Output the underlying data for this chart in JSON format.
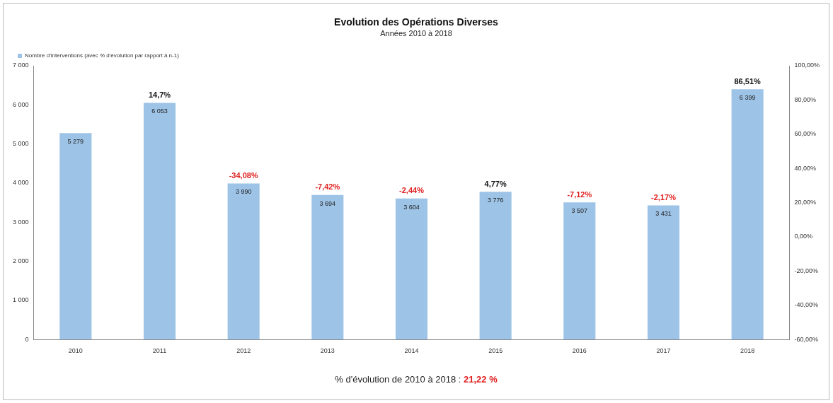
{
  "chart_data": {
    "type": "bar",
    "title": "Evolution des Opérations Diverses",
    "subtitle": "Années 2010 à 2018",
    "categories": [
      "2010",
      "2011",
      "2012",
      "2013",
      "2014",
      "2015",
      "2016",
      "2017",
      "2018"
    ],
    "series": [
      {
        "name": "Nombre d'interventions (avec % d'évolution par rapport à n-1)",
        "color": "#9dc3e6",
        "values": [
          5279,
          6053,
          3990,
          3694,
          3604,
          3776,
          3507,
          3431,
          6399
        ],
        "value_labels": [
          "5 279",
          "6 053",
          "3 990",
          "3 694",
          "3 604",
          "3 776",
          "3 507",
          "3 431",
          "6 399"
        ]
      }
    ],
    "ylim": [
      0,
      7000
    ],
    "yticks": [
      {
        "value": 0,
        "label": "0"
      },
      {
        "value": 1000,
        "label": "1 000"
      },
      {
        "value": 2000,
        "label": "2 000"
      },
      {
        "value": 3000,
        "label": "3 000"
      },
      {
        "value": 4000,
        "label": "4 000"
      },
      {
        "value": 5000,
        "label": "5 000"
      },
      {
        "value": 6000,
        "label": "6 000"
      },
      {
        "value": 7000,
        "label": "7 000"
      }
    ],
    "y2lim": [
      -60,
      100
    ],
    "y2ticks": [
      {
        "value": -60,
        "label": "-60,00%"
      },
      {
        "value": -40,
        "label": "-40,00%"
      },
      {
        "value": -20,
        "label": "-20,00%"
      },
      {
        "value": 0,
        "label": "0,00%"
      },
      {
        "value": 20,
        "label": "20,00%"
      },
      {
        "value": 40,
        "label": "40,00%"
      },
      {
        "value": 60,
        "label": "60,00%"
      },
      {
        "value": 80,
        "label": "80,00%"
      },
      {
        "value": 100,
        "label": "100,00%"
      }
    ],
    "grid": false,
    "legend": "top left",
    "annotations": [
      {
        "text": "14,7%",
        "x": "2011",
        "y": 6053
      },
      {
        "text": "-34,08%",
        "x": "2012",
        "y": 3990
      },
      {
        "text": "-7,42%",
        "x": "2013",
        "y": 3694
      },
      {
        "text": "-2,44%",
        "x": "2014",
        "y": 3604
      },
      {
        "text": "4,77%",
        "x": "2015",
        "y": 3776
      },
      {
        "text": "-7,12%",
        "x": "2016",
        "y": 3507
      },
      {
        "text": "-2,17%",
        "x": "2017",
        "y": 3431
      },
      {
        "text": "86,51%",
        "x": "2018",
        "y": 6399
      },
      "% d'évolution de 2010 à 2018 : 21,22 %"
    ]
  }
}
